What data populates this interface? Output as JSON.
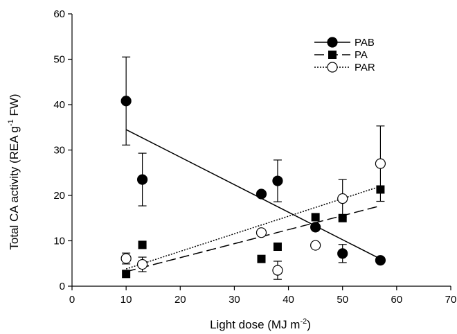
{
  "chart_data": {
    "type": "scatter",
    "xlabel": "Light dose (MJ m",
    "xlabel_sup": "-2",
    "xlabel_end": ")",
    "ylabel": "Total CA activity (REA g",
    "ylabel_sup": "-1",
    "ylabel_end": " FW)",
    "xlim": [
      0,
      70
    ],
    "ylim": [
      0,
      60
    ],
    "xticks": [
      0,
      10,
      20,
      30,
      40,
      50,
      60,
      70
    ],
    "yticks": [
      0,
      10,
      20,
      30,
      40,
      50,
      60
    ],
    "grid": false,
    "legend_position": "top-right",
    "series": [
      {
        "name": "PAB",
        "marker": "filled-circle",
        "line_style": "solid",
        "points": [
          {
            "x": 10,
            "y": 40.8,
            "err": 9.7
          },
          {
            "x": 13,
            "y": 23.5,
            "err": 5.8
          },
          {
            "x": 35,
            "y": 20.3,
            "err": 0
          },
          {
            "x": 38,
            "y": 23.2,
            "err": 4.6
          },
          {
            "x": 45,
            "y": 13.0,
            "err": 0
          },
          {
            "x": 50,
            "y": 7.2,
            "err": 2.0
          },
          {
            "x": 57,
            "y": 5.7,
            "err": 0
          }
        ],
        "fit": {
          "x": [
            10,
            57
          ],
          "y": [
            34.5,
            6.0
          ]
        }
      },
      {
        "name": "PA",
        "marker": "filled-square",
        "line_style": "dashed",
        "points": [
          {
            "x": 10,
            "y": 2.7,
            "err": 0
          },
          {
            "x": 13,
            "y": 9.1,
            "err": 0
          },
          {
            "x": 35,
            "y": 6.0,
            "err": 0
          },
          {
            "x": 38,
            "y": 8.7,
            "err": 0
          },
          {
            "x": 45,
            "y": 15.2,
            "err": 0
          },
          {
            "x": 50,
            "y": 15.0,
            "err": 0
          },
          {
            "x": 57,
            "y": 21.3,
            "err": 0
          }
        ],
        "fit": {
          "x": [
            10,
            57
          ],
          "y": [
            3.2,
            17.7
          ]
        }
      },
      {
        "name": "PAR",
        "marker": "open-circle",
        "line_style": "dotted",
        "points": [
          {
            "x": 10,
            "y": 6.1,
            "err": 1.2
          },
          {
            "x": 13,
            "y": 4.8,
            "err": 1.6
          },
          {
            "x": 35,
            "y": 11.8,
            "err": 0
          },
          {
            "x": 38,
            "y": 3.5,
            "err": 2.0
          },
          {
            "x": 45,
            "y": 9.0,
            "err": 0
          },
          {
            "x": 50,
            "y": 19.3,
            "err": 4.2
          },
          {
            "x": 57,
            "y": 27.0,
            "err": 8.3
          }
        ],
        "fit": {
          "x": [
            10,
            57
          ],
          "y": [
            3.8,
            22.0
          ]
        }
      }
    ]
  }
}
